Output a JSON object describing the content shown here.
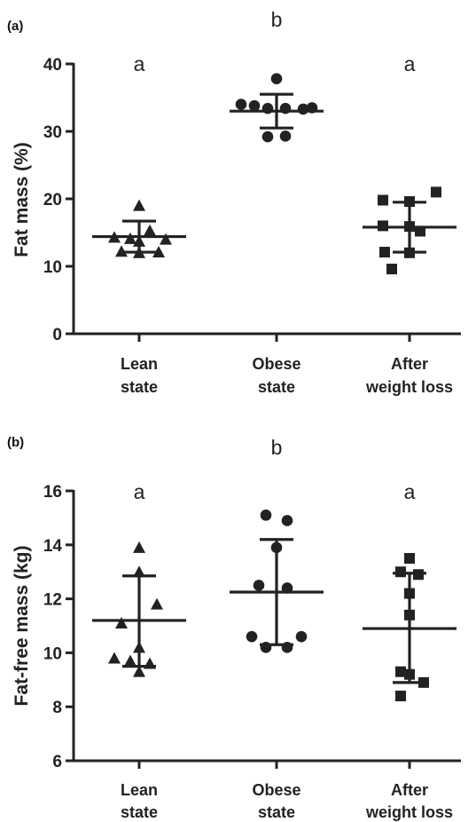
{
  "chart_data": [
    {
      "panel": "(a)",
      "type": "scatter",
      "ylabel": "Fat mass (%)",
      "ylim": [
        0,
        40
      ],
      "yticks": [
        0,
        10,
        20,
        30,
        40
      ],
      "categories": [
        {
          "line1": "Lean",
          "line2": "state"
        },
        {
          "line1": "Obese",
          "line2": "state"
        },
        {
          "line1": "After",
          "line2": "weight loss"
        }
      ],
      "significance": [
        "a",
        "b",
        "a"
      ],
      "series": [
        {
          "marker": "triangle",
          "points": [
            19.0,
            14.3,
            14.0,
            15.3,
            14.1,
            13.7,
            12.2,
            12.0,
            12.1
          ],
          "mean": 14.4,
          "sd_low": 12.1,
          "sd_high": 16.7
        },
        {
          "marker": "circle",
          "points": [
            37.8,
            34.0,
            33.8,
            33.3,
            33.4,
            33.4,
            33.5,
            29.2,
            29.3
          ],
          "mean": 33.0,
          "sd_low": 30.5,
          "sd_high": 35.5
        },
        {
          "marker": "square",
          "points": [
            19.8,
            21.0,
            19.6,
            16.0,
            15.9,
            15.2,
            12.0,
            12.1,
            9.6
          ],
          "mean": 15.8,
          "sd_low": 12.1,
          "sd_high": 19.5
        }
      ],
      "grid": false
    },
    {
      "panel": "(b)",
      "type": "scatter",
      "ylabel": "Fat-free mass (kg)",
      "ylim": [
        6,
        16
      ],
      "yticks": [
        6,
        8,
        10,
        12,
        14,
        16
      ],
      "categories": [
        {
          "line1": "Lean",
          "line2": "state"
        },
        {
          "line1": "Obese",
          "line2": "state"
        },
        {
          "line1": "After",
          "line2": "weight loss"
        }
      ],
      "significance": [
        "a",
        "b",
        "a"
      ],
      "series": [
        {
          "marker": "triangle",
          "points": [
            13.9,
            13.0,
            11.8,
            11.1,
            10.2,
            9.8,
            9.7,
            9.6,
            9.3
          ],
          "mean": 11.2,
          "sd_low": 9.5,
          "sd_high": 12.85
        },
        {
          "marker": "circle",
          "points": [
            15.1,
            14.9,
            13.9,
            12.5,
            12.4,
            10.6,
            10.6,
            10.2,
            10.2
          ],
          "mean": 12.25,
          "sd_low": 10.3,
          "sd_high": 14.2
        },
        {
          "marker": "square",
          "points": [
            13.5,
            13.0,
            12.9,
            12.2,
            11.4,
            9.3,
            9.2,
            8.9,
            8.4
          ],
          "mean": 10.9,
          "sd_low": 8.9,
          "sd_high": 12.95
        }
      ],
      "grid": false
    }
  ]
}
